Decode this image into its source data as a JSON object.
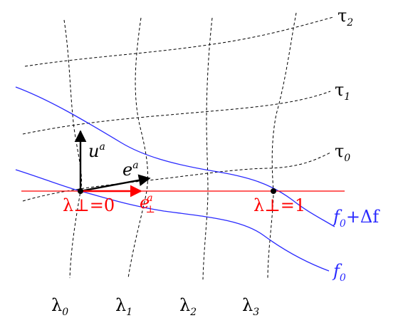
{
  "labels": {
    "tau2": {
      "main": "τ",
      "sub": "2"
    },
    "tau1": {
      "main": "τ",
      "sub": "1"
    },
    "tau0": {
      "main": "τ",
      "sub": "0"
    },
    "u": {
      "main": "u",
      "sup": "a"
    },
    "e": {
      "main": "e",
      "sup": "a"
    },
    "e_perp": {
      "main": "e",
      "sub": "⊥",
      "sup": "a"
    },
    "lambda_perp_0": "λ⊥=0",
    "lambda_perp_1": "λ⊥=1",
    "f0_plus": {
      "f": "f",
      "sub": "0",
      "rest": "+Δf"
    },
    "f0": {
      "f": "f",
      "sub": "0"
    },
    "lambda0": {
      "main": "λ",
      "sub": "0"
    },
    "lambda1": {
      "main": "λ",
      "sub": "1"
    },
    "lambda2": {
      "main": "λ",
      "sub": "2"
    },
    "lambda3": {
      "main": "λ",
      "sub": "3"
    }
  },
  "colors": {
    "blue": "#2a2aff",
    "red": "#ff0000",
    "black": "#000000",
    "dashed": "#000000"
  }
}
